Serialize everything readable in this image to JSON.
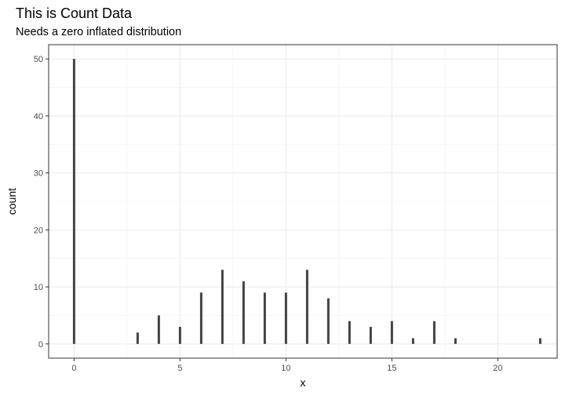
{
  "chart_data": {
    "type": "bar",
    "title": "This is Count Data",
    "subtitle": "Needs a zero inflated distribution",
    "xlabel": "x",
    "ylabel": "count",
    "xlim": [
      -1.2,
      22.8
    ],
    "ylim": [
      -2.5,
      52.5
    ],
    "xticks": [
      0,
      5,
      10,
      15,
      20
    ],
    "xtick_labels": [
      "0",
      "5",
      "10",
      "15",
      "20"
    ],
    "yticks": [
      0,
      10,
      20,
      30,
      40,
      50
    ],
    "ytick_labels": [
      "0",
      "10",
      "20",
      "30",
      "40",
      "50"
    ],
    "grid": true,
    "theme": "bw",
    "bar_color": "#444444",
    "x": [
      0,
      3,
      4,
      5,
      6,
      7,
      8,
      9,
      10,
      11,
      12,
      13,
      14,
      15,
      16,
      17,
      18,
      22
    ],
    "values": [
      50,
      2,
      5,
      3,
      9,
      13,
      11,
      9,
      9,
      13,
      8,
      4,
      3,
      4,
      1,
      4,
      1,
      1
    ]
  }
}
